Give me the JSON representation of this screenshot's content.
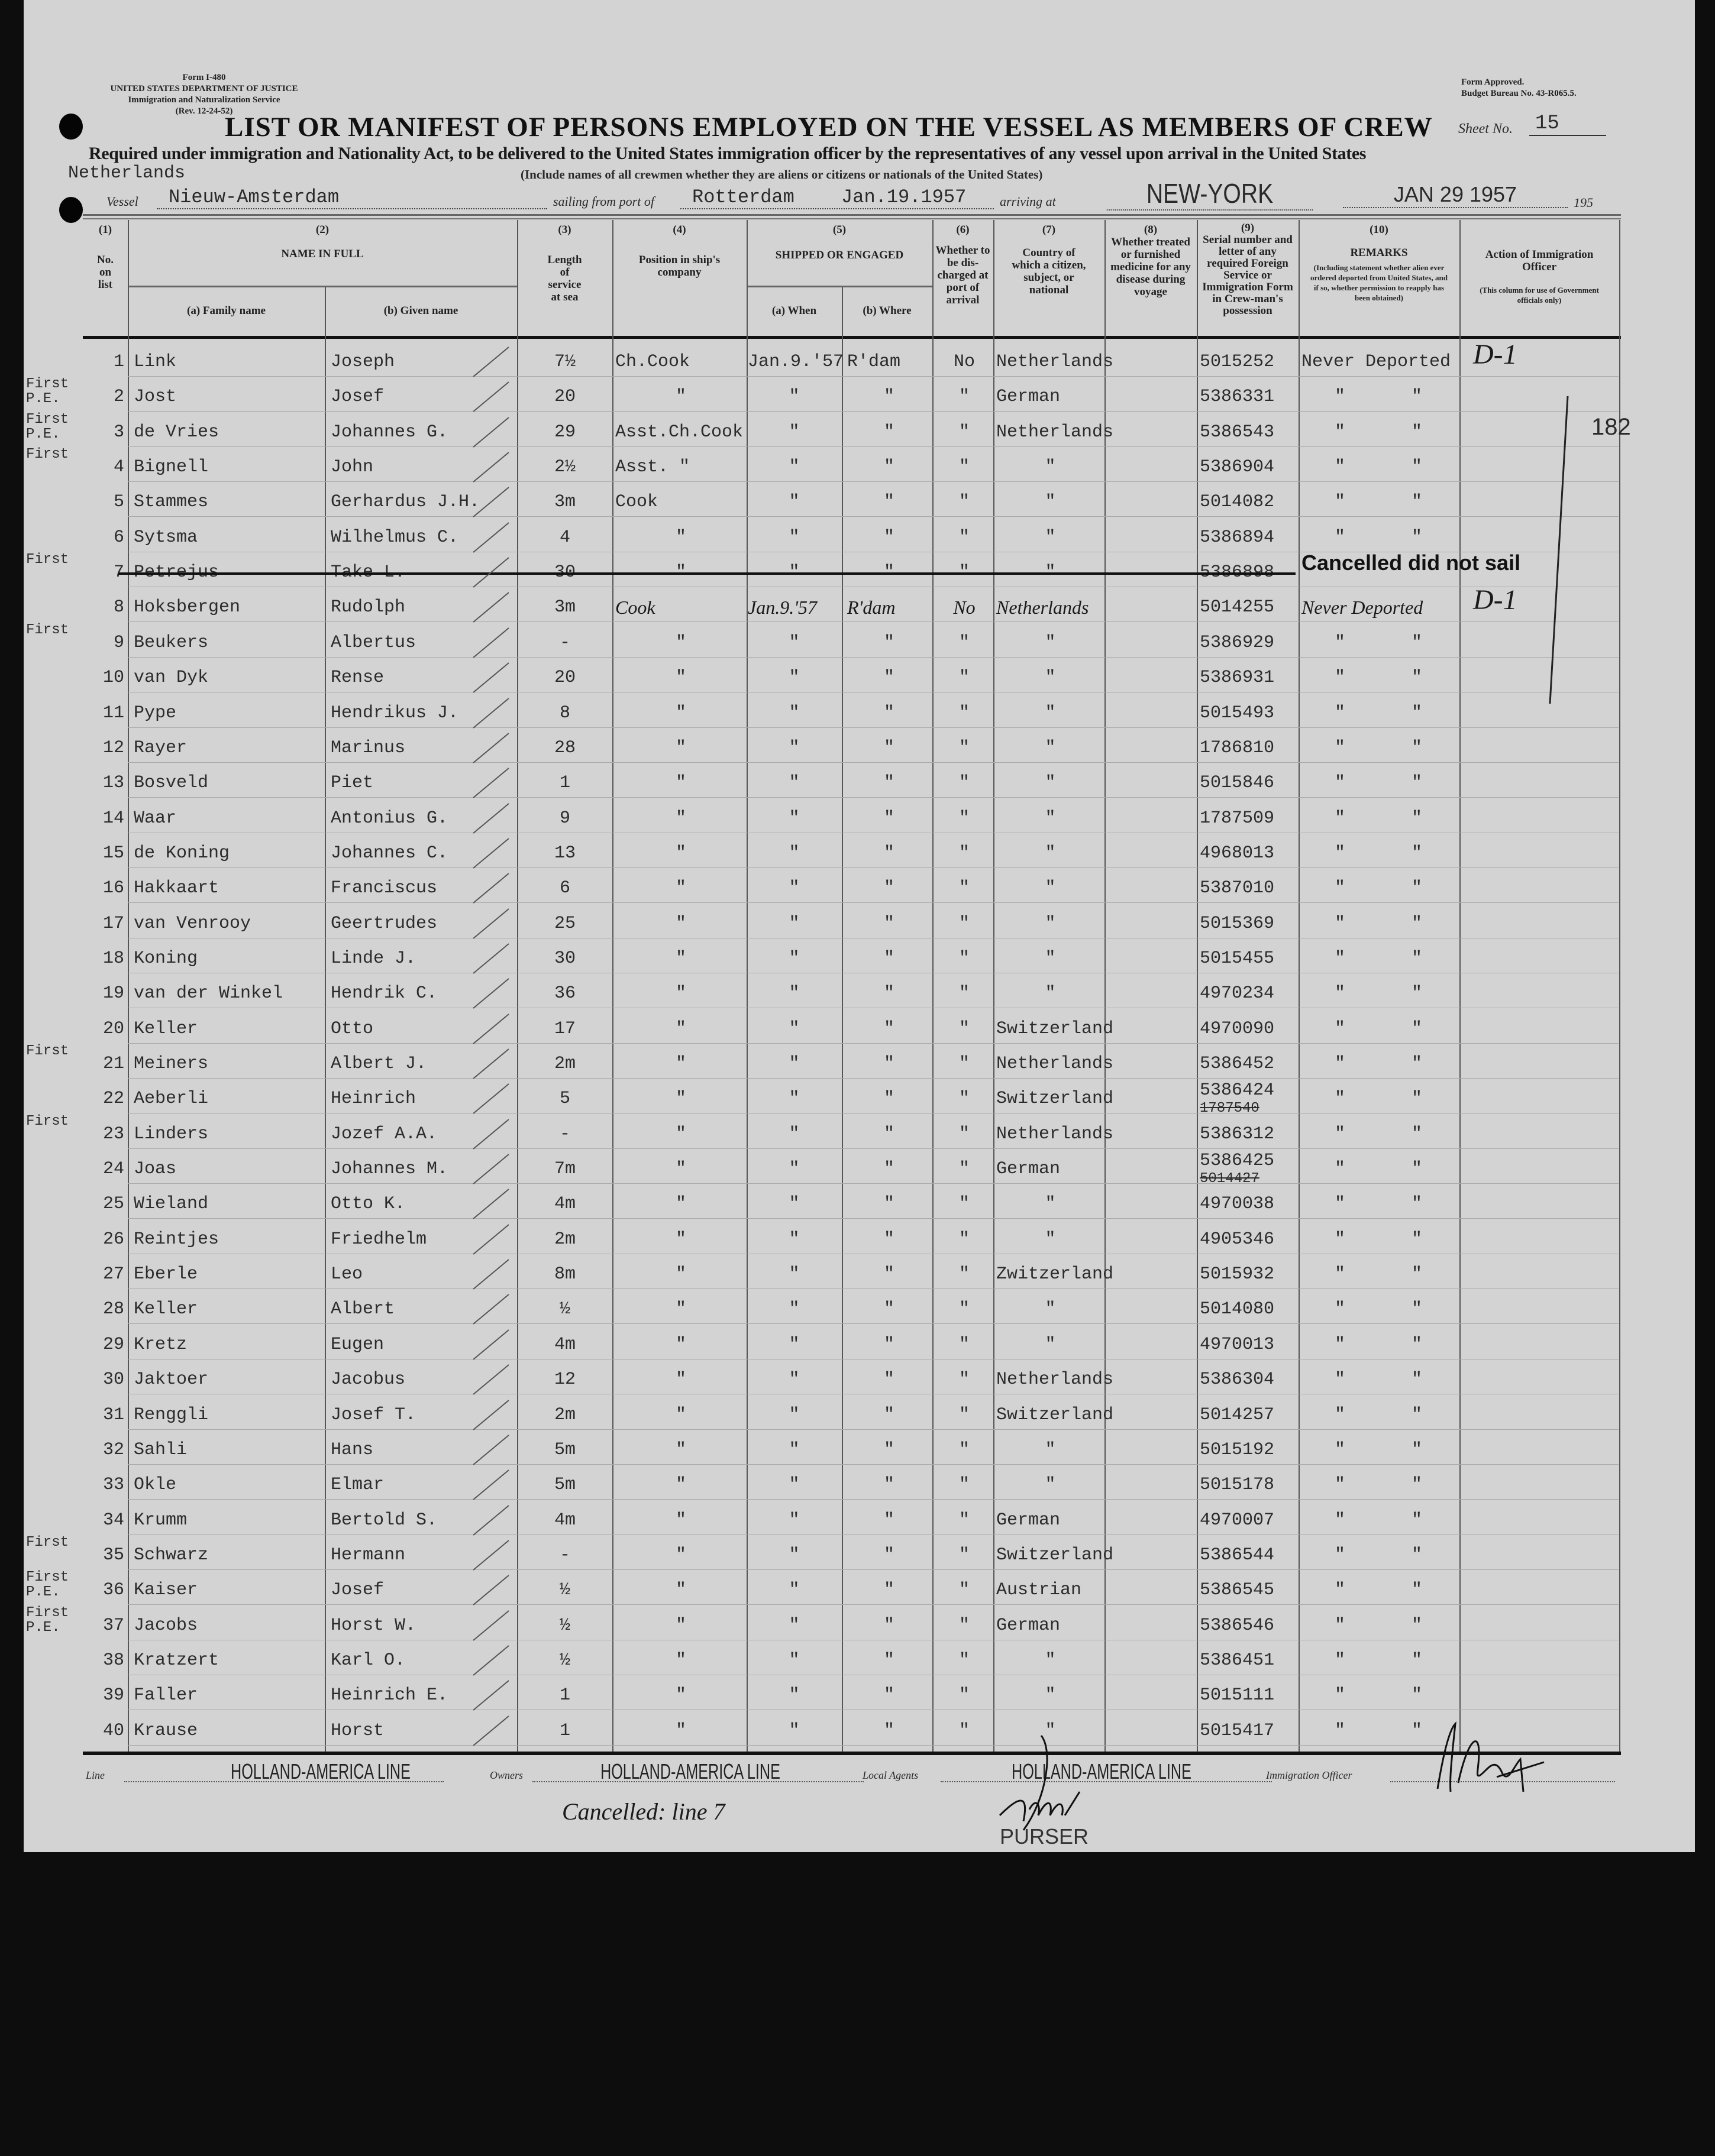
{
  "form_block": {
    "form": "Form I-480",
    "dept": "UNITED STATES DEPARTMENT OF JUSTICE",
    "service": "Immigration and Naturalization Service",
    "rev": "(Rev. 12-24-52)"
  },
  "approval": {
    "line1": "Form Approved.",
    "line2": "Budget Bureau No. 43-R065.5."
  },
  "title": "LIST OR MANIFEST OF PERSONS EMPLOYED ON THE VESSEL AS MEMBERS OF CREW",
  "sheet": {
    "label": "Sheet No.",
    "value": "15"
  },
  "required_text": "Required under immigration and Nationality Act, to be delivered to the United States immigration officer by the representatives of any vessel upon arrival in the United States",
  "include_text": "(Include names of all crewmen whether they are aliens or citizens or nationals of the United States)",
  "flag": "Netherlands",
  "voyage": {
    "vessel_label": "Vessel",
    "vessel": "Nieuw-Amsterdam",
    "sailing_label": "sailing from port of",
    "port": "Rotterdam",
    "sail_date": "Jan.19.1957",
    "arriving_label": "arriving at",
    "arrival_port": "NEW-YORK",
    "arrival_date": "JAN 29 1957",
    "year_suffix": "195"
  },
  "columns": {
    "c1_num": "(1)",
    "c1": "No. on list",
    "c2_num": "(2)",
    "c2": "NAME IN FULL",
    "c2a": "(a) Family name",
    "c2b": "(b) Given name",
    "c3_num": "(3)",
    "c3": "Length of service at sea",
    "c4_num": "(4)",
    "c4": "Position in ship's company",
    "c5_num": "(5)",
    "c5": "SHIPPED OR ENGAGED",
    "c5a": "(a) When",
    "c5b": "(b) Where",
    "c6_num": "(6)",
    "c6": "Whether to be dis-charged at port of arrival",
    "c7_num": "(7)",
    "c7": "Country of which a citizen, subject, or national",
    "c8_num": "(8)",
    "c8": "Whether treated or furnished medicine for any disease during voyage",
    "c9_num": "(9)",
    "c9": "Serial number and letter of any required Foreign Service or Immigration Form in Crew-man's possession",
    "c10_num": "(10)",
    "c10": "REMARKS",
    "c10_note": "(Including statement whether alien ever ordered deported from United States, and if so, whether permission to reapply has been obtained)",
    "c11": "Action of Immigration Officer",
    "c11_note": "(This column for use of Government officials only)"
  },
  "margin_note": "182",
  "rows": [
    {
      "no": "1",
      "prefix": "",
      "family": "Link",
      "given": "Joseph",
      "length": "7½",
      "position": "Ch.Cook",
      "when": "Jan.9.'57",
      "where": "R'dam",
      "discharged": "No",
      "country": "Netherlands",
      "serial": "5015252",
      "remarks": "Never Deported",
      "remarks2": "",
      "action": "D-1"
    },
    {
      "no": "2",
      "prefix": "First P.E.",
      "family": "Jost",
      "given": "Josef",
      "length": "20",
      "position": "\"",
      "when": "\"",
      "where": "\"",
      "discharged": "\"",
      "country": "German",
      "serial": "5386331",
      "remarks": "\"",
      "remarks2": "\""
    },
    {
      "no": "3",
      "prefix": "First P.E.",
      "family": "de Vries",
      "given": "Johannes G.",
      "length": "29",
      "position": "Asst.Ch.Cook",
      "when": "\"",
      "where": "\"",
      "discharged": "\"",
      "country": "Netherlands",
      "serial": "5386543",
      "remarks": "\"",
      "remarks2": "\""
    },
    {
      "no": "4",
      "prefix": "First",
      "family": "Bignell",
      "given": "John",
      "length": "2½",
      "position": "Asst. \"",
      "when": "\"",
      "where": "\"",
      "discharged": "\"",
      "country": "\"",
      "serial": "5386904",
      "remarks": "\"",
      "remarks2": "\""
    },
    {
      "no": "5",
      "prefix": "",
      "family": "Stammes",
      "given": "Gerhardus J.H.",
      "length": "3m",
      "position": "Cook",
      "when": "\"",
      "where": "\"",
      "discharged": "\"",
      "country": "\"",
      "serial": "5014082",
      "remarks": "\"",
      "remarks2": "\""
    },
    {
      "no": "6",
      "prefix": "",
      "family": "Sytsma",
      "given": "Wilhelmus C.",
      "length": "4",
      "position": "\"",
      "when": "\"",
      "where": "\"",
      "discharged": "\"",
      "country": "\"",
      "serial": "5386894",
      "remarks": "\"",
      "remarks2": "\""
    },
    {
      "no": "7",
      "prefix": "First",
      "family": "Petrejus",
      "given": "Take L.",
      "length": "30",
      "position": "\"",
      "when": "\"",
      "where": "\"",
      "discharged": "\"",
      "country": "\"",
      "serial": "5386898",
      "remarks": "Cancelled did not sail",
      "remarks2": "",
      "cancelled": true
    },
    {
      "no": "8",
      "prefix": "",
      "family": "Hoksbergen",
      "given": "Rudolph",
      "length": "3m",
      "position": "Cook",
      "when": "Jan.9.'57",
      "where": "R'dam",
      "discharged": "No",
      "country": "Netherlands",
      "serial": "5014255",
      "remarks": "Never Deported",
      "remarks2": "",
      "action": "D-1",
      "handwritten": true
    },
    {
      "no": "9",
      "prefix": "First",
      "family": "Beukers",
      "given": "Albertus",
      "length": "-",
      "position": "\"",
      "when": "\"",
      "where": "\"",
      "discharged": "\"",
      "country": "\"",
      "serial": "5386929",
      "remarks": "\"",
      "remarks2": "\""
    },
    {
      "no": "10",
      "prefix": "",
      "family": "van Dyk",
      "given": "Rense",
      "length": "20",
      "position": "\"",
      "when": "\"",
      "where": "\"",
      "discharged": "\"",
      "country": "\"",
      "serial": "5386931",
      "remarks": "\"",
      "remarks2": "\""
    },
    {
      "no": "11",
      "prefix": "",
      "family": "Pype",
      "given": "Hendrikus J.",
      "length": "8",
      "position": "\"",
      "when": "\"",
      "where": "\"",
      "discharged": "\"",
      "country": "\"",
      "serial": "5015493",
      "remarks": "\"",
      "remarks2": "\""
    },
    {
      "no": "12",
      "prefix": "",
      "family": "Rayer",
      "given": "Marinus",
      "length": "28",
      "position": "\"",
      "when": "\"",
      "where": "\"",
      "discharged": "\"",
      "country": "\"",
      "serial": "1786810",
      "remarks": "\"",
      "remarks2": "\""
    },
    {
      "no": "13",
      "prefix": "",
      "family": "Bosveld",
      "given": "Piet",
      "length": "1",
      "position": "\"",
      "when": "\"",
      "where": "\"",
      "discharged": "\"",
      "country": "\"",
      "serial": "5015846",
      "remarks": "\"",
      "remarks2": "\""
    },
    {
      "no": "14",
      "prefix": "",
      "family": "Waar",
      "given": "Antonius G.",
      "length": "9",
      "position": "\"",
      "when": "\"",
      "where": "\"",
      "discharged": "\"",
      "country": "\"",
      "serial": "1787509",
      "remarks": "\"",
      "remarks2": "\""
    },
    {
      "no": "15",
      "prefix": "",
      "family": "de Koning",
      "given": "Johannes C.",
      "length": "13",
      "position": "\"",
      "when": "\"",
      "where": "\"",
      "discharged": "\"",
      "country": "\"",
      "serial": "4968013",
      "remarks": "\"",
      "remarks2": "\""
    },
    {
      "no": "16",
      "prefix": "",
      "family": "Hakkaart",
      "given": "Franciscus",
      "length": "6",
      "position": "\"",
      "when": "\"",
      "where": "\"",
      "discharged": "\"",
      "country": "\"",
      "serial": "5387010",
      "remarks": "\"",
      "remarks2": "\""
    },
    {
      "no": "17",
      "prefix": "",
      "family": "van Venrooy",
      "given": "Geertrudes",
      "length": "25",
      "position": "\"",
      "when": "\"",
      "where": "\"",
      "discharged": "\"",
      "country": "\"",
      "serial": "5015369",
      "remarks": "\"",
      "remarks2": "\""
    },
    {
      "no": "18",
      "prefix": "",
      "family": "Koning",
      "given": "Linde J.",
      "length": "30",
      "position": "\"",
      "when": "\"",
      "where": "\"",
      "discharged": "\"",
      "country": "\"",
      "serial": "5015455",
      "remarks": "\"",
      "remarks2": "\""
    },
    {
      "no": "19",
      "prefix": "",
      "family": "van der Winkel",
      "given": "Hendrik C.",
      "length": "36",
      "position": "\"",
      "when": "\"",
      "where": "\"",
      "discharged": "\"",
      "country": "\"",
      "serial": "4970234",
      "remarks": "\"",
      "remarks2": "\""
    },
    {
      "no": "20",
      "prefix": "",
      "family": "Keller",
      "given": "Otto",
      "length": "17",
      "position": "\"",
      "when": "\"",
      "where": "\"",
      "discharged": "\"",
      "country": "Switzerland",
      "serial": "4970090",
      "remarks": "\"",
      "remarks2": "\""
    },
    {
      "no": "21",
      "prefix": "First",
      "family": "Meiners",
      "given": "Albert J.",
      "length": "2m",
      "position": "\"",
      "when": "\"",
      "where": "\"",
      "discharged": "\"",
      "country": "Netherlands",
      "serial": "5386452",
      "remarks": "\"",
      "remarks2": "\""
    },
    {
      "no": "22",
      "prefix": "",
      "family": "Aeberli",
      "given": "Heinrich",
      "length": "5",
      "position": "\"",
      "when": "\"",
      "where": "\"",
      "discharged": "\"",
      "country": "Switzerland",
      "serial": "5386424",
      "serial_struck": "1787540",
      "remarks": "\"",
      "remarks2": "\""
    },
    {
      "no": "23",
      "prefix": "First",
      "family": "Linders",
      "given": "Jozef A.A.",
      "length": "-",
      "position": "\"",
      "when": "\"",
      "where": "\"",
      "discharged": "\"",
      "country": "Netherlands",
      "serial": "5386312",
      "remarks": "\"",
      "remarks2": "\""
    },
    {
      "no": "24",
      "prefix": "",
      "family": "Joas",
      "given": "Johannes M.",
      "length": "7m",
      "position": "\"",
      "when": "\"",
      "where": "\"",
      "discharged": "\"",
      "country": "German",
      "serial": "5386425",
      "serial_struck": "5014427",
      "remarks": "\"",
      "remarks2": "\""
    },
    {
      "no": "25",
      "prefix": "",
      "family": "Wieland",
      "given": "Otto K.",
      "length": "4m",
      "position": "\"",
      "when": "\"",
      "where": "\"",
      "discharged": "\"",
      "country": "\"",
      "serial": "4970038",
      "remarks": "\"",
      "remarks2": "\""
    },
    {
      "no": "26",
      "prefix": "",
      "family": "Reintjes",
      "given": "Friedhelm",
      "length": "2m",
      "position": "\"",
      "when": "\"",
      "where": "\"",
      "discharged": "\"",
      "country": "\"",
      "serial": "4905346",
      "remarks": "\"",
      "remarks2": "\""
    },
    {
      "no": "27",
      "prefix": "",
      "family": "Eberle",
      "given": "Leo",
      "length": "8m",
      "position": "\"",
      "when": "\"",
      "where": "\"",
      "discharged": "\"",
      "country": "Zwitzerland",
      "serial": "5015932",
      "remarks": "\"",
      "remarks2": "\""
    },
    {
      "no": "28",
      "prefix": "",
      "family": "Keller",
      "given": "Albert",
      "length": "½",
      "position": "\"",
      "when": "\"",
      "where": "\"",
      "discharged": "\"",
      "country": "\"",
      "serial": "5014080",
      "remarks": "\"",
      "remarks2": "\""
    },
    {
      "no": "29",
      "prefix": "",
      "family": "Kretz",
      "given": "Eugen",
      "length": "4m",
      "position": "\"",
      "when": "\"",
      "where": "\"",
      "discharged": "\"",
      "country": "\"",
      "serial": "4970013",
      "remarks": "\"",
      "remarks2": "\""
    },
    {
      "no": "30",
      "prefix": "",
      "family": "Jaktoer",
      "given": "Jacobus",
      "length": "12",
      "position": "\"",
      "when": "\"",
      "where": "\"",
      "discharged": "\"",
      "country": "Netherlands",
      "serial": "5386304",
      "remarks": "\"",
      "remarks2": "\""
    },
    {
      "no": "31",
      "prefix": "",
      "family": "Renggli",
      "given": "Josef T.",
      "length": "2m",
      "position": "\"",
      "when": "\"",
      "where": "\"",
      "discharged": "\"",
      "country": "Switzerland",
      "serial": "5014257",
      "remarks": "\"",
      "remarks2": "\""
    },
    {
      "no": "32",
      "prefix": "",
      "family": "Sahli",
      "given": "Hans",
      "length": "5m",
      "position": "\"",
      "when": "\"",
      "where": "\"",
      "discharged": "\"",
      "country": "\"",
      "serial": "5015192",
      "remarks": "\"",
      "remarks2": "\""
    },
    {
      "no": "33",
      "prefix": "",
      "family": "Okle",
      "given": "Elmar",
      "length": "5m",
      "position": "\"",
      "when": "\"",
      "where": "\"",
      "discharged": "\"",
      "country": "\"",
      "serial": "5015178",
      "remarks": "\"",
      "remarks2": "\""
    },
    {
      "no": "34",
      "prefix": "",
      "family": "Krumm",
      "given": "Bertold S.",
      "length": "4m",
      "position": "\"",
      "when": "\"",
      "where": "\"",
      "discharged": "\"",
      "country": "German",
      "serial": "4970007",
      "remarks": "\"",
      "remarks2": "\""
    },
    {
      "no": "35",
      "prefix": "First",
      "family": "Schwarz",
      "given": "Hermann",
      "length": "-",
      "position": "\"",
      "when": "\"",
      "where": "\"",
      "discharged": "\"",
      "country": "Switzerland",
      "serial": "5386544",
      "remarks": "\"",
      "remarks2": "\""
    },
    {
      "no": "36",
      "prefix": "First P.E.",
      "family": "Kaiser",
      "given": "Josef",
      "length": "½",
      "position": "\"",
      "when": "\"",
      "where": "\"",
      "discharged": "\"",
      "country": "Austrian",
      "serial": "5386545",
      "remarks": "\"",
      "remarks2": "\""
    },
    {
      "no": "37",
      "prefix": "First P.E.",
      "family": "Jacobs",
      "given": "Horst W.",
      "length": "½",
      "position": "\"",
      "when": "\"",
      "where": "\"",
      "discharged": "\"",
      "country": "German",
      "serial": "5386546",
      "remarks": "\"",
      "remarks2": "\""
    },
    {
      "no": "38",
      "prefix": "",
      "family": "Kratzert",
      "given": "Karl O.",
      "length": "½",
      "position": "\"",
      "when": "\"",
      "where": "\"",
      "discharged": "\"",
      "country": "\"",
      "serial": "5386451",
      "remarks": "\"",
      "remarks2": "\""
    },
    {
      "no": "39",
      "prefix": "",
      "family": "Faller",
      "given": "Heinrich E.",
      "length": "1",
      "position": "\"",
      "when": "\"",
      "where": "\"",
      "discharged": "\"",
      "country": "\"",
      "serial": "5015111",
      "remarks": "\"",
      "remarks2": "\""
    },
    {
      "no": "40",
      "prefix": "",
      "family": "Krause",
      "given": "Horst",
      "length": "1",
      "position": "\"",
      "when": "\"",
      "where": "\"",
      "discharged": "\"",
      "country": "\"",
      "serial": "5015417",
      "remarks": "\"",
      "remarks2": "\""
    }
  ],
  "footer": {
    "line_label": "Line",
    "line": "HOLLAND-AMERICA LINE",
    "owners_label": "Owners",
    "owners": "HOLLAND-AMERICA LINE",
    "agents_label": "Local Agents",
    "agents": "HOLLAND-AMERICA LINE",
    "officer_label": "Immigration Officer",
    "cancel_note": "Cancelled: line 7",
    "purser": "PURSER"
  }
}
